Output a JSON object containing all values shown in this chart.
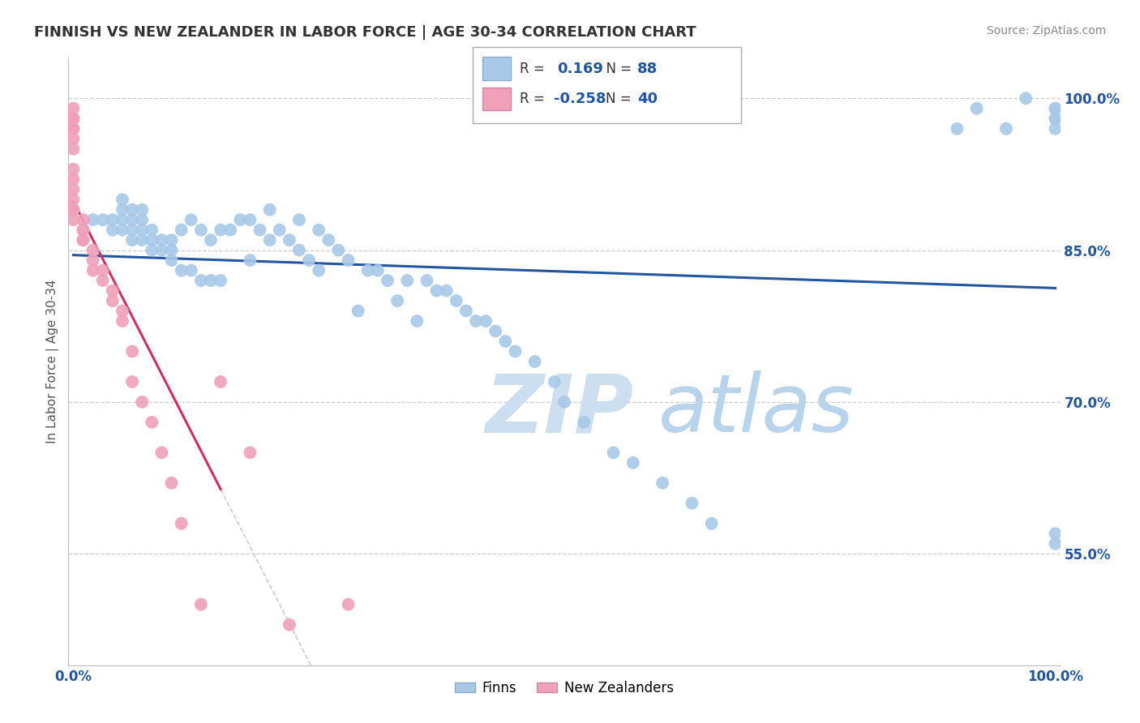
{
  "title": "FINNISH VS NEW ZEALANDER IN LABOR FORCE | AGE 30-34 CORRELATION CHART",
  "source_text": "Source: ZipAtlas.com",
  "ylabel": "In Labor Force | Age 30-34",
  "ylabel_ticks": [
    "55.0%",
    "70.0%",
    "85.0%",
    "100.0%"
  ],
  "ylabel_tick_vals": [
    0.55,
    0.7,
    0.85,
    1.0
  ],
  "ylim": [
    0.44,
    1.04
  ],
  "xlim": [
    -0.005,
    1.005
  ],
  "legend_blue_label": "Finns",
  "legend_pink_label": "New Zealanders",
  "R_blue": 0.169,
  "N_blue": 88,
  "R_pink": -0.258,
  "N_pink": 40,
  "blue_color": "#a8c8e8",
  "pink_color": "#f0a0b8",
  "blue_line_color": "#2255a0",
  "pink_line_color": "#cc3060",
  "watermark_color": "#d0e8f5",
  "background_color": "#ffffff",
  "title_fontsize": 13,
  "source_fontsize": 10,
  "blue_x": [
    0.02,
    0.03,
    0.04,
    0.04,
    0.05,
    0.05,
    0.05,
    0.05,
    0.06,
    0.06,
    0.06,
    0.06,
    0.07,
    0.07,
    0.07,
    0.07,
    0.08,
    0.08,
    0.08,
    0.09,
    0.09,
    0.1,
    0.1,
    0.1,
    0.11,
    0.11,
    0.12,
    0.12,
    0.13,
    0.13,
    0.14,
    0.14,
    0.15,
    0.15,
    0.16,
    0.17,
    0.18,
    0.18,
    0.19,
    0.2,
    0.2,
    0.21,
    0.22,
    0.23,
    0.23,
    0.24,
    0.25,
    0.25,
    0.26,
    0.27,
    0.28,
    0.29,
    0.3,
    0.31,
    0.32,
    0.33,
    0.34,
    0.35,
    0.36,
    0.37,
    0.38,
    0.39,
    0.4,
    0.41,
    0.42,
    0.43,
    0.44,
    0.45,
    0.47,
    0.49,
    0.5,
    0.52,
    0.55,
    0.57,
    0.6,
    0.63,
    0.65,
    0.9,
    0.92,
    0.95,
    0.97,
    1.0,
    1.0,
    1.0,
    1.0,
    1.0,
    1.0,
    1.0
  ],
  "blue_y": [
    0.88,
    0.88,
    0.87,
    0.88,
    0.87,
    0.88,
    0.89,
    0.9,
    0.86,
    0.87,
    0.88,
    0.89,
    0.86,
    0.87,
    0.88,
    0.89,
    0.85,
    0.86,
    0.87,
    0.85,
    0.86,
    0.84,
    0.85,
    0.86,
    0.83,
    0.87,
    0.83,
    0.88,
    0.82,
    0.87,
    0.82,
    0.86,
    0.82,
    0.87,
    0.87,
    0.88,
    0.84,
    0.88,
    0.87,
    0.86,
    0.89,
    0.87,
    0.86,
    0.85,
    0.88,
    0.84,
    0.83,
    0.87,
    0.86,
    0.85,
    0.84,
    0.79,
    0.83,
    0.83,
    0.82,
    0.8,
    0.82,
    0.78,
    0.82,
    0.81,
    0.81,
    0.8,
    0.79,
    0.78,
    0.78,
    0.77,
    0.76,
    0.75,
    0.74,
    0.72,
    0.7,
    0.68,
    0.65,
    0.64,
    0.62,
    0.6,
    0.58,
    0.97,
    0.99,
    0.97,
    1.0,
    0.99,
    0.99,
    0.98,
    0.98,
    0.97,
    0.57,
    0.56
  ],
  "pink_x": [
    0.0,
    0.0,
    0.0,
    0.0,
    0.0,
    0.0,
    0.0,
    0.0,
    0.0,
    0.0,
    0.0,
    0.0,
    0.0,
    0.0,
    0.01,
    0.01,
    0.01,
    0.01,
    0.01,
    0.02,
    0.02,
    0.02,
    0.03,
    0.03,
    0.04,
    0.04,
    0.05,
    0.05,
    0.06,
    0.06,
    0.07,
    0.08,
    0.09,
    0.1,
    0.11,
    0.13,
    0.15,
    0.18,
    0.22,
    0.28
  ],
  "pink_y": [
    0.99,
    0.98,
    0.98,
    0.97,
    0.97,
    0.96,
    0.95,
    0.93,
    0.92,
    0.91,
    0.9,
    0.89,
    0.89,
    0.88,
    0.88,
    0.87,
    0.87,
    0.86,
    0.86,
    0.85,
    0.84,
    0.83,
    0.83,
    0.82,
    0.81,
    0.8,
    0.79,
    0.78,
    0.75,
    0.72,
    0.7,
    0.68,
    0.65,
    0.62,
    0.58,
    0.5,
    0.72,
    0.65,
    0.48,
    0.5
  ]
}
